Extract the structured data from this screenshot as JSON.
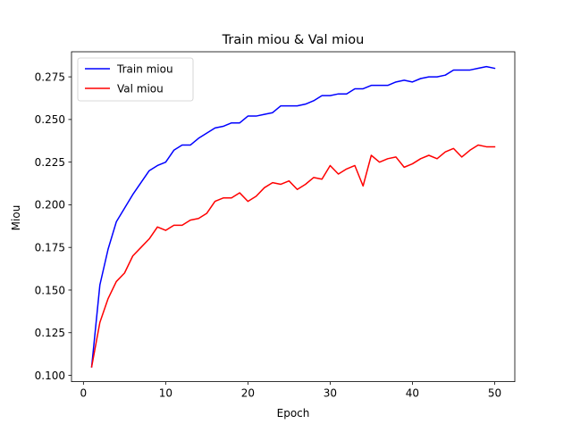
{
  "chart_data": {
    "type": "line",
    "title": "Train miou & Val miou",
    "xlabel": "Epoch",
    "ylabel": "Miou",
    "xlim": [
      -1.45,
      52.45
    ],
    "ylim": [
      0.0963,
      0.2897
    ],
    "xticks": [
      0,
      10,
      20,
      30,
      40,
      50
    ],
    "xtick_labels": [
      "0",
      "10",
      "20",
      "30",
      "40",
      "50"
    ],
    "yticks": [
      0.1,
      0.125,
      0.15,
      0.175,
      0.2,
      0.225,
      0.25,
      0.275
    ],
    "ytick_labels": [
      "0.100",
      "0.125",
      "0.150",
      "0.175",
      "0.200",
      "0.225",
      "0.250",
      "0.275"
    ],
    "grid": false,
    "legend_position": "top-left",
    "x": [
      1,
      2,
      3,
      4,
      5,
      6,
      7,
      8,
      9,
      10,
      11,
      12,
      13,
      14,
      15,
      16,
      17,
      18,
      19,
      20,
      21,
      22,
      23,
      24,
      25,
      26,
      27,
      28,
      29,
      30,
      31,
      32,
      33,
      34,
      35,
      36,
      37,
      38,
      39,
      40,
      41,
      42,
      43,
      44,
      45,
      46,
      47,
      48,
      49,
      50
    ],
    "series": [
      {
        "name": "Train miou",
        "color": "#0000ff",
        "values": [
          0.105,
          0.153,
          0.174,
          0.19,
          0.198,
          0.206,
          0.213,
          0.22,
          0.223,
          0.225,
          0.232,
          0.235,
          0.235,
          0.239,
          0.242,
          0.245,
          0.246,
          0.248,
          0.248,
          0.252,
          0.252,
          0.253,
          0.254,
          0.258,
          0.258,
          0.258,
          0.259,
          0.261,
          0.264,
          0.264,
          0.265,
          0.265,
          0.268,
          0.268,
          0.27,
          0.27,
          0.27,
          0.272,
          0.273,
          0.272,
          0.274,
          0.275,
          0.275,
          0.276,
          0.279,
          0.279,
          0.279,
          0.28,
          0.281,
          0.28
        ]
      },
      {
        "name": "Val miou",
        "color": "#ff0000",
        "values": [
          0.105,
          0.131,
          0.145,
          0.155,
          0.16,
          0.17,
          0.175,
          0.18,
          0.187,
          0.185,
          0.188,
          0.188,
          0.191,
          0.192,
          0.195,
          0.202,
          0.204,
          0.204,
          0.207,
          0.202,
          0.205,
          0.21,
          0.213,
          0.212,
          0.214,
          0.209,
          0.212,
          0.216,
          0.215,
          0.223,
          0.218,
          0.221,
          0.223,
          0.211,
          0.229,
          0.225,
          0.227,
          0.228,
          0.222,
          0.224,
          0.227,
          0.229,
          0.227,
          0.231,
          0.233,
          0.228,
          0.232,
          0.235,
          0.234,
          0.234
        ]
      }
    ]
  }
}
